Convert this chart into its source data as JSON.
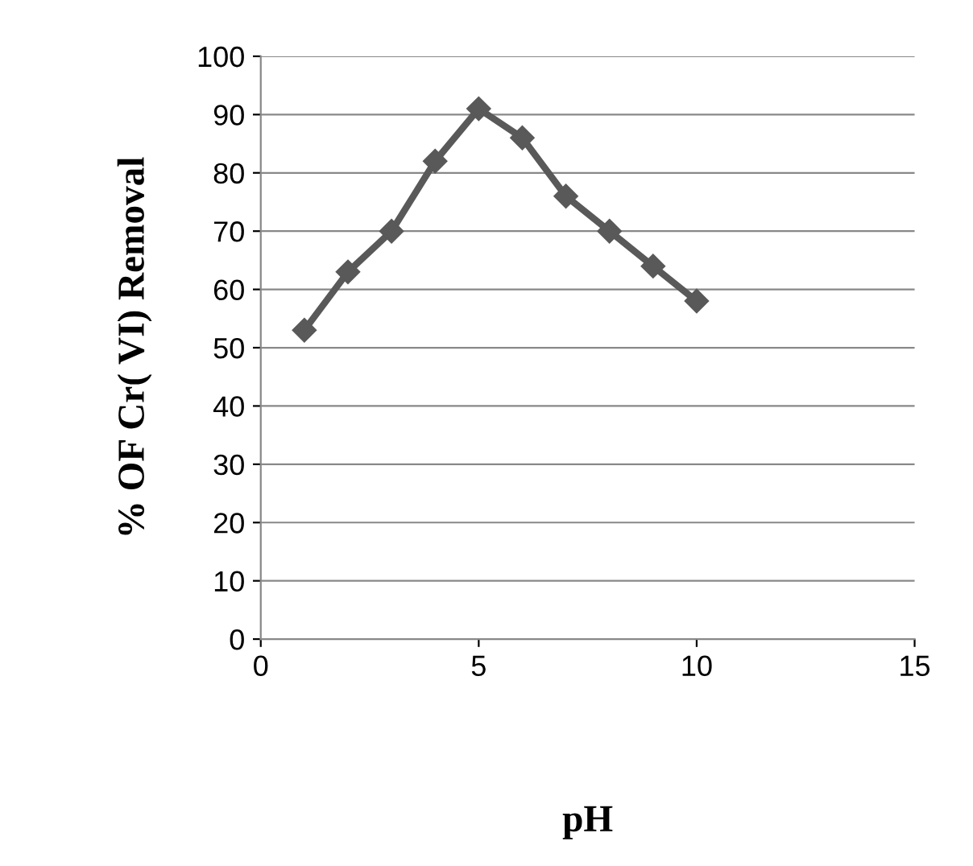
{
  "chart_data": {
    "type": "line",
    "xlabel": "pH",
    "ylabel": "% OF Cr( VI) Removal",
    "x": [
      1,
      2,
      3,
      4,
      5,
      6,
      7,
      8,
      9,
      10
    ],
    "series": [
      {
        "color": "#595959",
        "values": [
          53,
          63,
          70,
          82,
          91,
          86,
          76,
          70,
          64,
          58
        ]
      }
    ],
    "xlim": [
      0,
      15
    ],
    "xticks": [
      0,
      5,
      10,
      15
    ],
    "ylim": [
      0,
      100
    ],
    "yticks": [
      0,
      10,
      20,
      30,
      40,
      50,
      60,
      70,
      80,
      90,
      100
    ],
    "grid": "y",
    "legend": false,
    "marker": "diamond",
    "line_style": "solid"
  }
}
